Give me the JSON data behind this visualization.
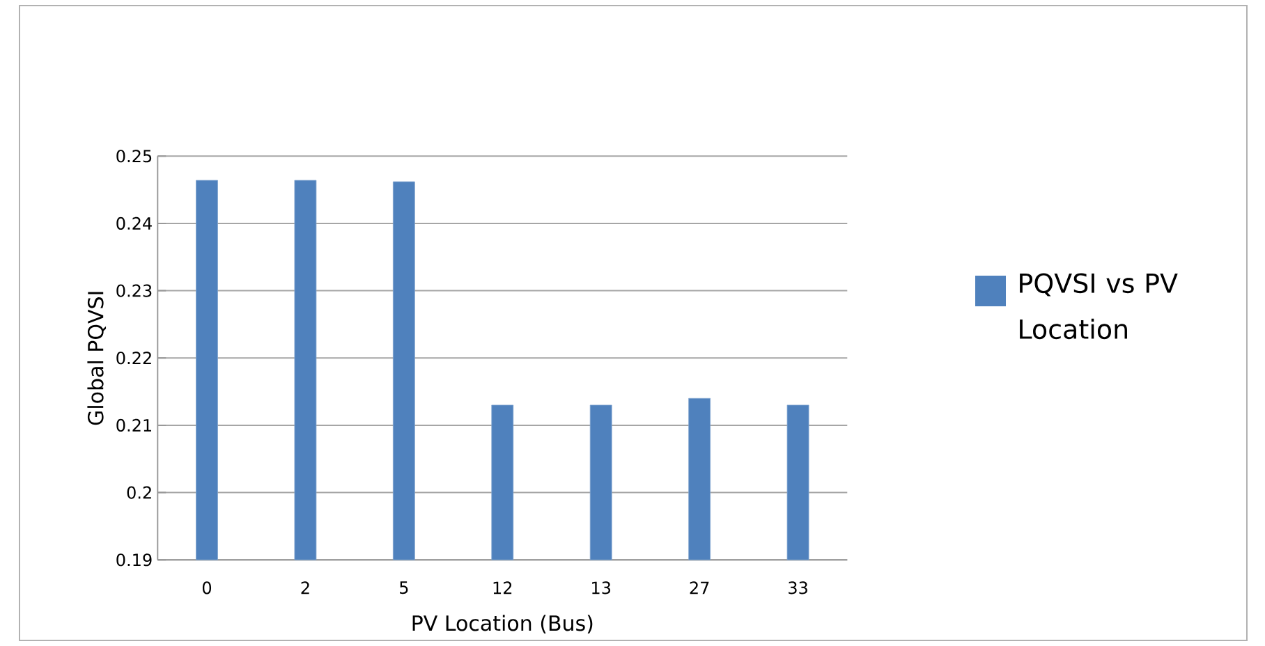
{
  "chart_data": {
    "type": "bar",
    "xlabel": "PV Location (Bus)",
    "ylabel": "Global PQVSI",
    "categories": [
      "0",
      "2",
      "5",
      "12",
      "13",
      "27",
      "33"
    ],
    "series": [
      {
        "name": "PQVSI vs PV Location",
        "color": "#4f81bd",
        "values": [
          0.2464,
          0.2464,
          0.2462,
          0.213,
          0.213,
          0.214,
          0.213
        ]
      }
    ],
    "ylim": [
      0.19,
      0.25
    ],
    "yticks": [
      0.19,
      0.2,
      0.21,
      0.22,
      0.23,
      0.24,
      0.25
    ],
    "grid": "y",
    "legend": "right"
  }
}
